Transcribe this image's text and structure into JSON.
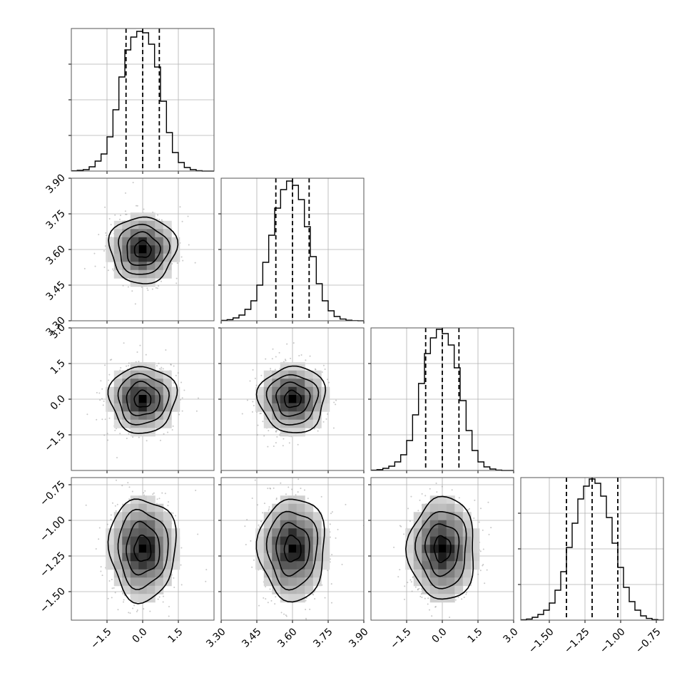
{
  "chart_data": {
    "type": "corner",
    "grid": true,
    "parameters": [
      {
        "index": 0,
        "median": 0.0,
        "quantiles": [
          -0.7,
          0.0,
          0.7
        ],
        "range": [
          -3.0,
          3.0
        ],
        "ticks": [
          -1.5,
          0.0,
          1.5
        ],
        "tick_labels": [
          "-1.5",
          "0.0",
          "1.5"
        ],
        "hist_bin_edges": [
          -3.0,
          -2.75,
          -2.5,
          -2.25,
          -2.0,
          -1.75,
          -1.5,
          -1.25,
          -1.0,
          -0.75,
          -0.5,
          -0.25,
          0.0,
          0.25,
          0.5,
          0.75,
          1.0,
          1.25,
          1.5,
          1.75,
          2.0,
          2.25,
          2.5,
          2.75,
          3.0
        ],
        "hist_counts": [
          0.2,
          0.5,
          1,
          3,
          7,
          12,
          24,
          43,
          66,
          85,
          94,
          98,
          97,
          89,
          73,
          49,
          27,
          13,
          6,
          2.5,
          1,
          0.3,
          0,
          0
        ],
        "hist_ymax": 100
      },
      {
        "index": 1,
        "median": 3.6,
        "quantiles": [
          3.53,
          3.6,
          3.67
        ],
        "range": [
          3.3,
          3.9
        ],
        "ticks": [
          3.3,
          3.45,
          3.6,
          3.75,
          3.9
        ],
        "tick_labels": [
          "3.30",
          "3.45",
          "3.60",
          "3.75",
          "3.90"
        ],
        "hist_bin_edges": [
          3.3,
          3.325,
          3.35,
          3.375,
          3.4,
          3.425,
          3.45,
          3.475,
          3.5,
          3.525,
          3.55,
          3.575,
          3.6,
          3.625,
          3.65,
          3.675,
          3.7,
          3.725,
          3.75,
          3.775,
          3.8,
          3.825,
          3.85,
          3.875,
          3.9
        ],
        "hist_counts": [
          0.3,
          0.8,
          2,
          4,
          8,
          14,
          25,
          41,
          60,
          79,
          92,
          98,
          95,
          85,
          66,
          45,
          26,
          14,
          7,
          3,
          1.2,
          0.4,
          0.1,
          0
        ],
        "hist_ymax": 100
      },
      {
        "index": 2,
        "median": 0.0,
        "quantiles": [
          -0.7,
          0.0,
          0.7
        ],
        "range": [
          -3.0,
          3.0
        ],
        "ticks": [
          -1.5,
          0.0,
          1.5,
          3.0
        ],
        "tick_labels": [
          "-1.5",
          "0.0",
          "1.5",
          "3.0"
        ],
        "hist_bin_edges": [
          -3.0,
          -2.75,
          -2.5,
          -2.25,
          -2.0,
          -1.75,
          -1.5,
          -1.25,
          -1.0,
          -0.75,
          -0.5,
          -0.25,
          0.0,
          0.25,
          0.5,
          0.75,
          1.0,
          1.25,
          1.5,
          1.75,
          2.0,
          2.25,
          2.5,
          2.75,
          3.0
        ],
        "hist_counts": [
          0.2,
          0.6,
          1.5,
          3,
          6,
          11,
          21,
          39,
          61,
          82,
          93,
          99,
          96,
          88,
          72,
          49,
          28,
          14,
          6,
          2.5,
          1,
          0.3,
          0,
          0
        ],
        "hist_ymax": 100
      },
      {
        "index": 3,
        "median": -1.2,
        "quantiles": [
          -1.38,
          -1.2,
          -1.02
        ],
        "range": [
          -1.7,
          -0.7
        ],
        "ticks": [
          -1.5,
          -1.25,
          -1.0,
          -0.75
        ],
        "tick_labels": [
          "-1.50",
          "-1.25",
          "-1.00",
          "-0.75"
        ],
        "hist_bin_edges": [
          -1.7,
          -1.66,
          -1.62,
          -1.58,
          -1.54,
          -1.5,
          -1.46,
          -1.42,
          -1.38,
          -1.34,
          -1.3,
          -1.26,
          -1.22,
          -1.18,
          -1.14,
          -1.1,
          -1.06,
          -1.02,
          -0.98,
          -0.94,
          -0.9,
          -0.86,
          -0.82,
          -0.78,
          -0.74,
          -0.7
        ],
        "hist_counts": [
          0.3,
          0.8,
          2,
          4,
          7,
          12,
          21,
          34,
          51,
          68,
          85,
          94,
          99,
          96,
          87,
          72,
          54,
          37,
          23,
          13,
          7,
          3,
          1.2,
          0.4,
          0.1
        ],
        "hist_ymax": 100
      }
    ],
    "pairs": [
      {
        "x_param": 0,
        "y_param": 1,
        "mean": [
          0.0,
          3.6
        ],
        "sd": [
          0.7,
          0.07
        ]
      },
      {
        "x_param": 0,
        "y_param": 2,
        "mean": [
          0.0,
          0.0
        ],
        "sd": [
          0.7,
          0.7
        ]
      },
      {
        "x_param": 1,
        "y_param": 2,
        "mean": [
          3.6,
          0.0
        ],
        "sd": [
          0.07,
          0.7
        ]
      },
      {
        "x_param": 0,
        "y_param": 3,
        "mean": [
          0.0,
          -1.2
        ],
        "sd": [
          0.7,
          0.18
        ]
      },
      {
        "x_param": 1,
        "y_param": 3,
        "mean": [
          3.6,
          -1.2
        ],
        "sd": [
          0.07,
          0.18
        ]
      },
      {
        "x_param": 2,
        "y_param": 3,
        "mean": [
          0.0,
          -1.2
        ],
        "sd": [
          0.7,
          0.18
        ]
      }
    ],
    "contour_levels_sigma": [
      0.5,
      1.0,
      1.5,
      2.0
    ],
    "colors": {
      "hist_line": "#000000",
      "quantile_line": "#000000",
      "contour_line": "#000000",
      "density_dark": "#1a1a1a",
      "density_light": "#f2f2f2",
      "scatter_points": "#9a9a9a",
      "grid": "#b0b0b0",
      "frame": "#555555"
    }
  }
}
